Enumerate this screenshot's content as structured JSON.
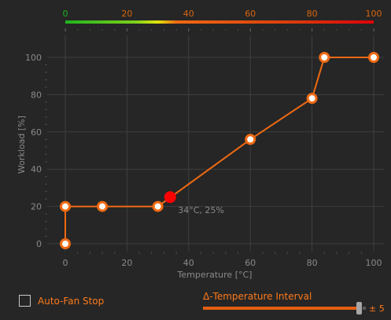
{
  "chart_data": {
    "type": "line",
    "xlabel": "Temperature [°C]",
    "ylabel": "Workload [%]",
    "xlim": [
      0,
      100
    ],
    "ylim": [
      0,
      100
    ],
    "x_ticks": [
      0,
      20,
      40,
      60,
      80,
      100
    ],
    "y_ticks": [
      0,
      20,
      40,
      60,
      80,
      100
    ],
    "top_scale_ticks": [
      0,
      20,
      40,
      60,
      80,
      100
    ],
    "grid": true,
    "series": [
      {
        "points": [
          {
            "x": 0,
            "y": 0
          },
          {
            "x": 0,
            "y": 20
          },
          {
            "x": 12,
            "y": 20
          },
          {
            "x": 30,
            "y": 20
          },
          {
            "x": 60,
            "y": 56
          },
          {
            "x": 80,
            "y": 78
          },
          {
            "x": 84,
            "y": 100
          },
          {
            "x": 100,
            "y": 100
          }
        ]
      }
    ],
    "current_point": {
      "x": 34,
      "y": 25,
      "label": "34°C, 25%"
    },
    "colors": {
      "curve": "#f06a12",
      "current": "#ff0000",
      "grid": "#3f3f3f",
      "text": "#8a8a8a",
      "gradient": [
        "#1fb51f",
        "#e3e60a",
        "#f06a12",
        "#d93a0c",
        "#e0000a"
      ]
    }
  },
  "auto_fan_stop": {
    "label": "Auto-Fan Stop",
    "checked": false
  },
  "temperature_interval": {
    "label": "Δ-Temperature Interval",
    "value_text": "± 5",
    "value": 5,
    "fill": 0.97
  }
}
